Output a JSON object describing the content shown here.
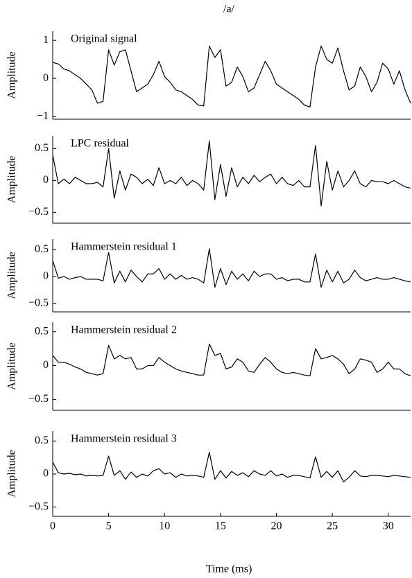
{
  "chart_data": [
    {
      "type": "line",
      "title": "/a/",
      "annotation": "Original signal",
      "ylabel": "Amplitude",
      "color": "#000000",
      "x": [
        0,
        0.5,
        1,
        1.5,
        2,
        2.5,
        3,
        3.5,
        4,
        4.5,
        5,
        5.5,
        6,
        6.5,
        7,
        7.5,
        8,
        8.5,
        9,
        9.5,
        10,
        10.5,
        11,
        11.5,
        12,
        12.5,
        13,
        13.5,
        14,
        14.5,
        15,
        15.5,
        16,
        16.5,
        17,
        17.5,
        18,
        18.5,
        19,
        19.5,
        20,
        20.5,
        21,
        21.5,
        22,
        22.5,
        23,
        23.5,
        24,
        24.5,
        25,
        25.5,
        26,
        26.5,
        27,
        27.5,
        28,
        28.5,
        29,
        29.5,
        30,
        30.5,
        31,
        31.5,
        32
      ],
      "values": [
        0.42,
        0.38,
        0.25,
        0.2,
        0.1,
        0.0,
        -0.15,
        -0.3,
        -0.65,
        -0.6,
        0.75,
        0.35,
        0.7,
        0.75,
        0.2,
        -0.35,
        -0.25,
        -0.15,
        0.1,
        0.45,
        0.05,
        -0.1,
        -0.3,
        -0.35,
        -0.45,
        -0.55,
        -0.7,
        -0.72,
        0.85,
        0.55,
        0.75,
        -0.2,
        -0.1,
        0.3,
        0.05,
        -0.35,
        -0.25,
        0.1,
        0.45,
        0.2,
        -0.15,
        -0.25,
        -0.35,
        -0.45,
        -0.55,
        -0.7,
        -0.75,
        0.3,
        0.85,
        0.5,
        0.4,
        0.8,
        0.2,
        -0.3,
        -0.2,
        0.3,
        0.05,
        -0.35,
        -0.1,
        0.4,
        0.25,
        -0.15,
        0.2,
        -0.3,
        -0.65
      ],
      "xlim": [
        0,
        32
      ],
      "ylim": [
        -1.07,
        1.24
      ],
      "yticks": [
        {
          "value": -1,
          "label": "−1"
        },
        0,
        1
      ]
    },
    {
      "type": "line",
      "annotation": "LPC residual",
      "ylabel": "Amplitude",
      "color": "#000000",
      "x": [
        0,
        0.5,
        1,
        1.5,
        2,
        2.5,
        3,
        3.5,
        4,
        4.5,
        5,
        5.5,
        6,
        6.5,
        7,
        7.5,
        8,
        8.5,
        9,
        9.5,
        10,
        10.5,
        11,
        11.5,
        12,
        12.5,
        13,
        13.5,
        14,
        14.5,
        15,
        15.5,
        16,
        16.5,
        17,
        17.5,
        18,
        18.5,
        19,
        19.5,
        20,
        20.5,
        21,
        21.5,
        22,
        22.5,
        23,
        23.5,
        24,
        24.5,
        25,
        25.5,
        26,
        26.5,
        27,
        27.5,
        28,
        28.5,
        29,
        29.5,
        30,
        30.5,
        31,
        31.5,
        32
      ],
      "values": [
        0.4,
        -0.05,
        0.02,
        -0.05,
        0.05,
        0,
        -0.05,
        -0.05,
        -0.03,
        -0.1,
        0.5,
        -0.28,
        0.15,
        -0.15,
        0.1,
        0.05,
        -0.05,
        0.02,
        -0.08,
        0.2,
        -0.05,
        0,
        -0.05,
        0.05,
        -0.08,
        0,
        -0.05,
        -0.15,
        0.62,
        -0.3,
        0.25,
        -0.25,
        0.2,
        -0.1,
        0.05,
        -0.05,
        0.08,
        -0.02,
        0.05,
        0.1,
        -0.05,
        0.05,
        -0.05,
        -0.08,
        0,
        -0.1,
        -0.1,
        0.55,
        -0.4,
        0.3,
        -0.15,
        0.15,
        -0.1,
        0,
        0.15,
        -0.05,
        -0.1,
        0,
        -0.02,
        -0.02,
        -0.05,
        0,
        -0.05,
        -0.1,
        -0.12
      ],
      "xlim": [
        0,
        32
      ],
      "ylim": [
        -0.67,
        0.7
      ],
      "yticks": [
        {
          "value": -0.5,
          "label": "−0.5"
        },
        0,
        0.5
      ]
    },
    {
      "type": "line",
      "annotation": "Hammerstein residual 1",
      "ylabel": "Amplitude",
      "color": "#000000",
      "x": [
        0,
        0.5,
        1,
        1.5,
        2,
        2.5,
        3,
        3.5,
        4,
        4.5,
        5,
        5.5,
        6,
        6.5,
        7,
        7.5,
        8,
        8.5,
        9,
        9.5,
        10,
        10.5,
        11,
        11.5,
        12,
        12.5,
        13,
        13.5,
        14,
        14.5,
        15,
        15.5,
        16,
        16.5,
        17,
        17.5,
        18,
        18.5,
        19,
        19.5,
        20,
        20.5,
        21,
        21.5,
        22,
        22.5,
        23,
        23.5,
        24,
        24.5,
        25,
        25.5,
        26,
        26.5,
        27,
        27.5,
        28,
        28.5,
        29,
        29.5,
        30,
        30.5,
        31,
        31.5,
        32
      ],
      "values": [
        0.3,
        -0.03,
        0,
        -0.05,
        -0.02,
        0,
        -0.05,
        -0.05,
        -0.05,
        -0.08,
        0.45,
        -0.12,
        0.1,
        -0.1,
        0.12,
        0,
        -0.1,
        0.05,
        0.05,
        0.15,
        -0.05,
        0.05,
        -0.05,
        0.02,
        -0.05,
        -0.02,
        -0.05,
        -0.12,
        0.52,
        -0.2,
        0.15,
        -0.15,
        0.1,
        -0.05,
        0.05,
        -0.08,
        0.1,
        0,
        0.05,
        0.05,
        -0.05,
        -0.02,
        -0.08,
        -0.05,
        -0.05,
        -0.1,
        -0.1,
        0.42,
        -0.2,
        0.12,
        -0.1,
        0.1,
        -0.12,
        -0.05,
        0.12,
        -0.02,
        -0.08,
        -0.05,
        -0.02,
        -0.05,
        -0.05,
        -0.02,
        -0.05,
        -0.08,
        -0.1
      ],
      "xlim": [
        0,
        32
      ],
      "ylim": [
        -0.66,
        0.7
      ],
      "yticks": [
        {
          "value": -0.5,
          "label": "−0.5"
        },
        0,
        0.5
      ]
    },
    {
      "type": "line",
      "annotation": "Hammerstein residual 2",
      "ylabel": "Amplitude",
      "color": "#000000",
      "x": [
        0,
        0.5,
        1,
        1.5,
        2,
        2.5,
        3,
        3.5,
        4,
        4.5,
        5,
        5.5,
        6,
        6.5,
        7,
        7.5,
        8,
        8.5,
        9,
        9.5,
        10,
        10.5,
        11,
        11.5,
        12,
        12.5,
        13,
        13.5,
        14,
        14.5,
        15,
        15.5,
        16,
        16.5,
        17,
        17.5,
        18,
        18.5,
        19,
        19.5,
        20,
        20.5,
        21,
        21.5,
        22,
        22.5,
        23,
        23.5,
        24,
        24.5,
        25,
        25.5,
        26,
        26.5,
        27,
        27.5,
        28,
        28.5,
        29,
        29.5,
        30,
        30.5,
        31,
        31.5,
        32
      ],
      "values": [
        0.15,
        0.05,
        0.05,
        0.02,
        -0.02,
        -0.05,
        -0.1,
        -0.12,
        -0.14,
        -0.12,
        0.3,
        0.1,
        0.15,
        0.1,
        0.12,
        -0.05,
        -0.05,
        0,
        0,
        0.12,
        0.05,
        0,
        -0.05,
        -0.08,
        -0.1,
        -0.12,
        -0.14,
        -0.14,
        0.32,
        0.15,
        0.18,
        -0.05,
        -0.02,
        0.1,
        0.05,
        -0.08,
        -0.1,
        0.02,
        0.12,
        0.05,
        -0.05,
        -0.1,
        -0.12,
        -0.1,
        -0.12,
        -0.14,
        -0.15,
        0.25,
        0.1,
        0.12,
        0.15,
        0.1,
        0.02,
        -0.12,
        -0.05,
        0.1,
        0.08,
        0.05,
        -0.1,
        -0.05,
        0.05,
        -0.05,
        -0.05,
        -0.12,
        -0.15
      ],
      "xlim": [
        0,
        32
      ],
      "ylim": [
        -0.66,
        0.64
      ],
      "yticks": [
        {
          "value": -0.5,
          "label": "−0.5"
        },
        0,
        0.5
      ]
    },
    {
      "type": "line",
      "annotation": "Hammerstein residual 3",
      "ylabel": "Amplitude",
      "color": "#000000",
      "x": [
        0,
        0.5,
        1,
        1.5,
        2,
        2.5,
        3,
        3.5,
        4,
        4.5,
        5,
        5.5,
        6,
        6.5,
        7,
        7.5,
        8,
        8.5,
        9,
        9.5,
        10,
        10.5,
        11,
        11.5,
        12,
        12.5,
        13,
        13.5,
        14,
        14.5,
        15,
        15.5,
        16,
        16.5,
        17,
        17.5,
        18,
        18.5,
        19,
        19.5,
        20,
        20.5,
        21,
        21.5,
        22,
        22.5,
        23,
        23.5,
        24,
        24.5,
        25,
        25.5,
        26,
        26.5,
        27,
        27.5,
        28,
        28.5,
        29,
        29.5,
        30,
        30.5,
        31,
        31.5,
        32
      ],
      "values": [
        0.18,
        0.02,
        0,
        0.01,
        -0.01,
        0,
        -0.03,
        -0.02,
        -0.03,
        -0.02,
        0.27,
        -0.02,
        0.05,
        -0.08,
        0.03,
        -0.05,
        0,
        -0.03,
        0.05,
        0.08,
        0,
        0.02,
        -0.05,
        0,
        -0.03,
        -0.02,
        -0.03,
        -0.05,
        0.33,
        -0.08,
        0.05,
        -0.06,
        0.04,
        -0.02,
        0.02,
        -0.04,
        0.05,
        0,
        -0.02,
        0.05,
        -0.03,
        0,
        -0.05,
        -0.02,
        -0.02,
        -0.04,
        -0.06,
        0.26,
        -0.05,
        0.04,
        -0.05,
        0.05,
        -0.12,
        -0.05,
        0.05,
        -0.03,
        -0.04,
        -0.02,
        -0.02,
        -0.03,
        -0.04,
        -0.02,
        -0.03,
        -0.04,
        -0.05
      ],
      "xlim": [
        0,
        32
      ],
      "ylim": [
        -0.64,
        0.65
      ],
      "xlabel": "Time (ms)",
      "xticks": [
        0,
        5,
        10,
        15,
        20,
        25,
        30
      ],
      "yticks": [
        {
          "value": -0.5,
          "label": "−0.5"
        },
        0,
        0.5
      ]
    }
  ]
}
